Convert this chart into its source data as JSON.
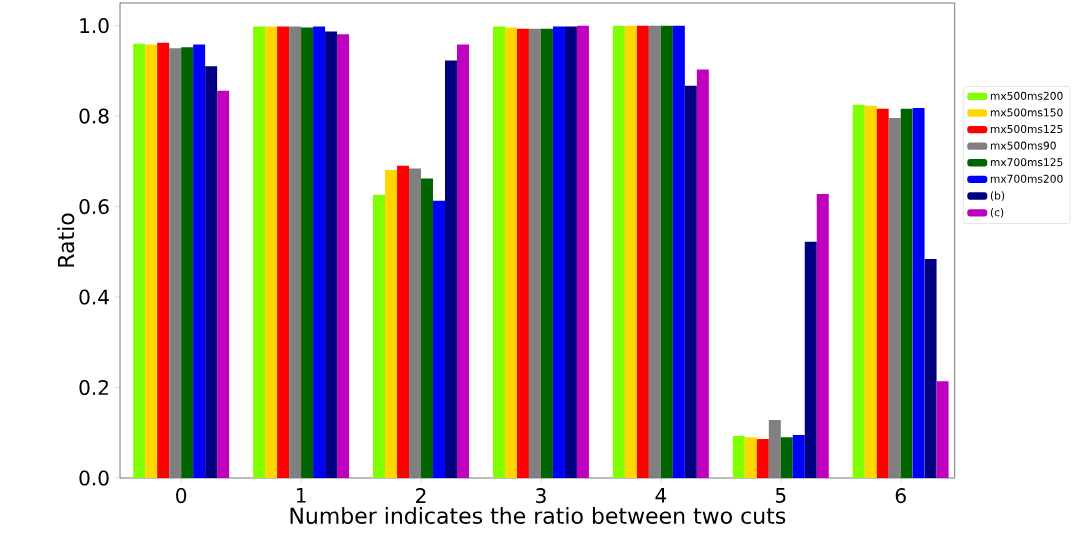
{
  "chart_data": {
    "type": "bar",
    "xlabel": "Number indicates the ratio between two cuts",
    "ylabel": "Ratio",
    "categories": [
      "0",
      "1",
      "2",
      "3",
      "4",
      "5",
      "6"
    ],
    "series": [
      {
        "name": "mx500ms200",
        "color": "#7fff00",
        "values": [
          0.96,
          0.998,
          0.626,
          0.998,
          1.0,
          0.093,
          0.825
        ]
      },
      {
        "name": "mx500ms150",
        "color": "#ffd700",
        "values": [
          0.958,
          0.998,
          0.681,
          0.996,
          1.0,
          0.09,
          0.823
        ]
      },
      {
        "name": "mx500ms125",
        "color": "#ff0000",
        "values": [
          0.962,
          0.998,
          0.69,
          0.993,
          1.0,
          0.086,
          0.816
        ]
      },
      {
        "name": "mx500ms90",
        "color": "#808080",
        "values": [
          0.95,
          0.998,
          0.684,
          0.993,
          1.0,
          0.128,
          0.796
        ]
      },
      {
        "name": "mx700ms125",
        "color": "#006400",
        "values": [
          0.952,
          0.996,
          0.662,
          0.993,
          1.0,
          0.09,
          0.816
        ]
      },
      {
        "name": "mx700ms200",
        "color": "#0000ff",
        "values": [
          0.958,
          0.998,
          0.613,
          0.998,
          1.0,
          0.095,
          0.818
        ]
      },
      {
        "name": "(b)",
        "color": "#000080",
        "values": [
          0.91,
          0.987,
          0.923,
          0.998,
          0.867,
          0.522,
          0.484
        ]
      },
      {
        "name": "(c)",
        "color": "#bf00bf",
        "values": [
          0.856,
          0.981,
          0.958,
          1.0,
          0.903,
          0.628,
          0.214
        ]
      }
    ],
    "ylim": [
      0,
      1.05
    ],
    "yticks": [
      {
        "value": 0,
        "label": "0.0"
      },
      0.2,
      0.4,
      0.6,
      0.8,
      {
        "value": 1,
        "label": "1.0"
      }
    ],
    "legend": "right"
  }
}
